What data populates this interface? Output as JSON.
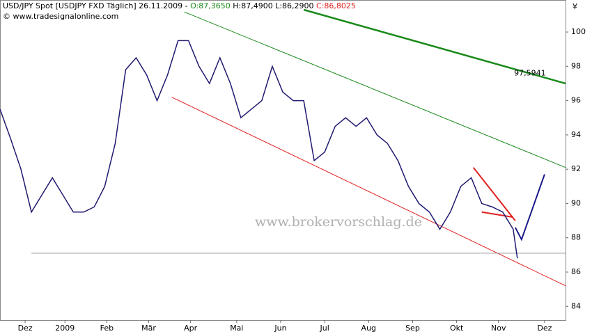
{
  "chart_data": {
    "type": "line",
    "header": {
      "prefix": "USD/JPY Spot [USDJPY FXD  Täglich] 26.11.2009 -",
      "open": "O:87,3650",
      "high_low": "H:87,4900 L:86,2900",
      "close": "C:86,8025"
    },
    "copyright": "© www.tradesignalonline.com",
    "watermark": "www.brokervorschlag.de",
    "y_unit": "¥",
    "x": [
      0,
      5,
      10,
      15,
      20,
      25,
      30,
      35,
      40,
      45,
      50,
      55,
      60,
      65,
      70,
      75,
      80,
      85,
      90,
      95,
      100,
      105,
      110,
      115,
      120,
      125,
      130,
      135,
      140,
      145,
      150,
      155,
      160,
      165,
      170,
      175,
      180,
      185,
      190,
      195,
      200,
      205,
      210,
      215,
      220,
      225,
      230,
      235,
      240,
      245,
      247
    ],
    "series": [
      {
        "color": "#1f1a70",
        "values": [
          95.5,
          93.8,
          92,
          89.5,
          90.5,
          91.5,
          90.5,
          89.5,
          89.5,
          89.8,
          91,
          93.5,
          97.8,
          98.5,
          97.5,
          96,
          97.5,
          99.5,
          99.5,
          98,
          97,
          98.5,
          97,
          95,
          95.5,
          96,
          98,
          96.5,
          96,
          96,
          92.5,
          93,
          94.5,
          95,
          94.5,
          95,
          94,
          93.5,
          92.5,
          91,
          90,
          89.5,
          88.5,
          89.5,
          91,
          91.5,
          90,
          89.8,
          89.5,
          88.5,
          86.8
        ]
      }
    ],
    "lines": [
      {
        "color": "#1a8a1a",
        "width": 2.5,
        "x": [
          145,
          270
        ],
        "y": [
          101.3,
          97.0
        ]
      },
      {
        "color": "#1a8a1a",
        "width": 1,
        "x": [
          88,
          270
        ],
        "y": [
          101.17,
          92.1
        ]
      },
      {
        "color": "#e02020",
        "width": 1,
        "x": [
          82,
          270
        ],
        "y": [
          96.2,
          85.2
        ]
      },
      {
        "color": "#999999",
        "width": 1,
        "x": [
          15,
          270
        ],
        "y": [
          87.1,
          87.1
        ]
      },
      {
        "color": "#e02020",
        "width": 2,
        "x": [
          226,
          246
        ],
        "y": [
          92.1,
          89.0
        ]
      },
      {
        "color": "#e02020",
        "width": 2,
        "x": [
          230,
          245
        ],
        "y": [
          89.5,
          89.2
        ]
      },
      {
        "color": "#1a1a8a",
        "width": 2,
        "x": [
          246,
          249,
          260
        ],
        "y": [
          88.6,
          87.9,
          91.7
        ]
      }
    ],
    "annotation": {
      "text": "97,5941",
      "x": 253,
      "y": 97.5941,
      "color": "#1a8a1a"
    },
    "xlim": [
      0,
      270
    ],
    "xticks": [
      {
        "value": 12,
        "label": "Dez"
      },
      {
        "value": 31,
        "label": "2009"
      },
      {
        "value": 51,
        "label": "Feb"
      },
      {
        "value": 71,
        "label": "Mär"
      },
      {
        "value": 91,
        "label": "Apr"
      },
      {
        "value": 113,
        "label": "Mai"
      },
      {
        "value": 134,
        "label": "Jun"
      },
      {
        "value": 155,
        "label": "Jul"
      },
      {
        "value": 176,
        "label": "Aug"
      },
      {
        "value": 197,
        "label": "Sep"
      },
      {
        "value": 218,
        "label": "Okt"
      },
      {
        "value": 238,
        "label": "Nov"
      },
      {
        "value": 260,
        "label": "Dez"
      }
    ],
    "ylim": [
      83.2,
      101.3
    ],
    "yticks": [
      84,
      86,
      88,
      90,
      92,
      94,
      96,
      98,
      100
    ],
    "grid": false
  }
}
